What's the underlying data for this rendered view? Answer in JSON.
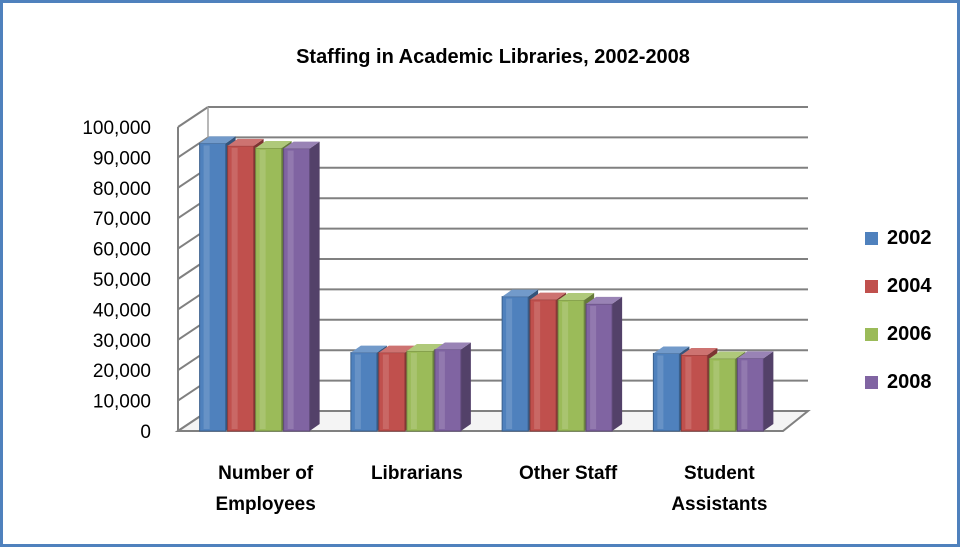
{
  "chart_data": {
    "type": "bar",
    "title": "Staffing in Academic Libraries, 2002-2008",
    "categories": [
      [
        "Number of",
        "Employees"
      ],
      [
        "Librarians"
      ],
      [
        "Other Staff"
      ],
      [
        "Student",
        "Assistants"
      ]
    ],
    "series": [
      {
        "name": "2002",
        "color": "#4f81bd",
        "values": [
          94600,
          25800,
          44200,
          25500
        ]
      },
      {
        "name": "2004",
        "color": "#c0504d",
        "values": [
          93800,
          25800,
          43200,
          25000
        ]
      },
      {
        "name": "2006",
        "color": "#9bbb59",
        "values": [
          93100,
          26300,
          43100,
          23800
        ]
      },
      {
        "name": "2008",
        "color": "#8064a2",
        "values": [
          92900,
          26800,
          41800,
          23900
        ]
      }
    ],
    "ylim": [
      0,
      100000
    ],
    "yticks": [
      "0",
      "10,000",
      "20,000",
      "30,000",
      "40,000",
      "50,000",
      "60,000",
      "70,000",
      "80,000",
      "90,000",
      "100,000"
    ],
    "grid": true,
    "legend_position": "right"
  }
}
